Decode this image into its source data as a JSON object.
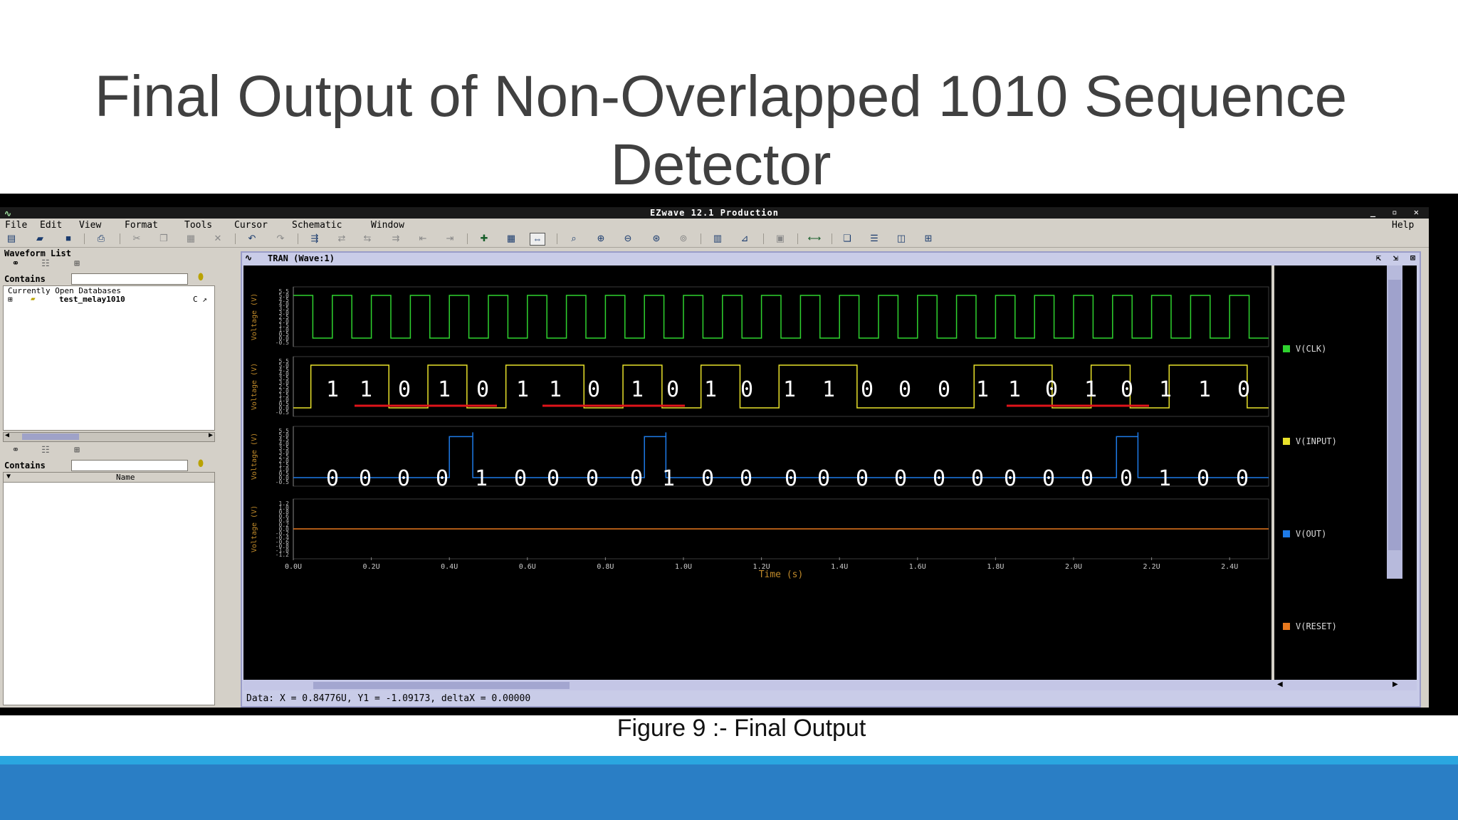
{
  "slide": {
    "title": "Final Output of Non-Overlapped 1010 Sequence Detector",
    "caption": "Figure 9 :-  Final Output"
  },
  "window": {
    "title": "EZwave 12.1 Production",
    "controls": [
      "_",
      "▫",
      "✕"
    ]
  },
  "menu": {
    "items": [
      "File",
      "Edit",
      "View",
      "Format",
      "Tools",
      "Cursor",
      "Schematic",
      "Window"
    ],
    "help": "Help"
  },
  "left_panel": {
    "waveform_list_label": "Waveform List",
    "contains_label": "Contains",
    "contains_label_2": "Contains",
    "open_db_label": "Currently Open Databases",
    "database_name": "test_melay1010",
    "database_suffix": "C ↗",
    "name_column": "Name"
  },
  "wave_window": {
    "title": "TRAN (Wave:1)"
  },
  "status": {
    "text": "Data: X = 0.84776U,  Y1 = -1.09173,  deltaX = 0.00000"
  },
  "colors": {
    "clk": "#2fd32f",
    "input": "#e8e12a",
    "out": "#1e7be8",
    "reset": "#e8791e",
    "underline": "#e0141a",
    "footer": "#2a7ec5",
    "footer_line": "#2aa6e0"
  },
  "chart_data": {
    "type": "line",
    "xlabel": "Time (s)",
    "x_ticks": [
      "0.0U",
      "0.2U",
      "0.4U",
      "0.6U",
      "0.8U",
      "1.0U",
      "1.2U",
      "1.4U",
      "1.6U",
      "1.8U",
      "2.0U",
      "2.2U",
      "2.4U"
    ],
    "xlim": [
      0,
      2.5
    ],
    "panels": [
      {
        "name": "V(CLK)",
        "ylabel": "Voltage (V)",
        "y_ticks": [
          "5.5",
          "5.0",
          "4.5",
          "4.0",
          "3.5",
          "3.0",
          "2.5",
          "2.0",
          "1.5",
          "1.0",
          "0.5",
          "0.0",
          "-0.5"
        ],
        "ylim": [
          -0.5,
          5.5
        ],
        "clock_period_us": 0.1,
        "high_v": 5.0,
        "low_v": 0.0
      },
      {
        "name": "V(INPUT)",
        "ylabel": "Voltage (V)",
        "y_ticks": [
          "5.5",
          "5.0",
          "4.5",
          "4.0",
          "3.5",
          "3.0",
          "2.5",
          "2.0",
          "1.5",
          "1.0",
          "0.5",
          "0.0",
          "-0.5"
        ],
        "ylim": [
          -0.5,
          5.5
        ],
        "bit_period_us": 0.1,
        "bits": [
          "1",
          "1",
          "0",
          "1",
          "0",
          "1",
          "1",
          "0",
          "1",
          "0",
          "1",
          "0",
          "1",
          "1",
          "0",
          "0",
          "0",
          "1",
          "1",
          "0",
          "1",
          "0",
          "1",
          "1",
          "0"
        ]
      },
      {
        "name": "V(OUT)",
        "ylabel": "Voltage (V)",
        "y_ticks": [
          "5.5",
          "5.0",
          "4.5",
          "4.0",
          "3.5",
          "3.0",
          "2.5",
          "2.0",
          "1.5",
          "1.0",
          "0.5",
          "0.0",
          "-0.5"
        ],
        "ylim": [
          -0.5,
          5.5
        ],
        "bits": [
          "0",
          "0",
          "0",
          "0",
          "1",
          "0",
          "0",
          "0",
          "0",
          "1",
          "0",
          "0",
          "0",
          "0",
          "0",
          "0",
          "0",
          "0",
          "0",
          "0",
          "0",
          "0",
          "1",
          "0",
          "0",
          "0"
        ]
      },
      {
        "name": "V(RESET)",
        "ylabel": "Voltage (V)",
        "y_ticks": [
          "1.2",
          "1.0",
          "0.8",
          "0.6",
          "0.4",
          "0.2",
          "0.0",
          "-0.2",
          "-0.4",
          "-0.6",
          "-0.8",
          "-1.0",
          "-1.2"
        ],
        "ylim": [
          -1.2,
          1.2
        ],
        "value_v": 0.0
      }
    ]
  }
}
